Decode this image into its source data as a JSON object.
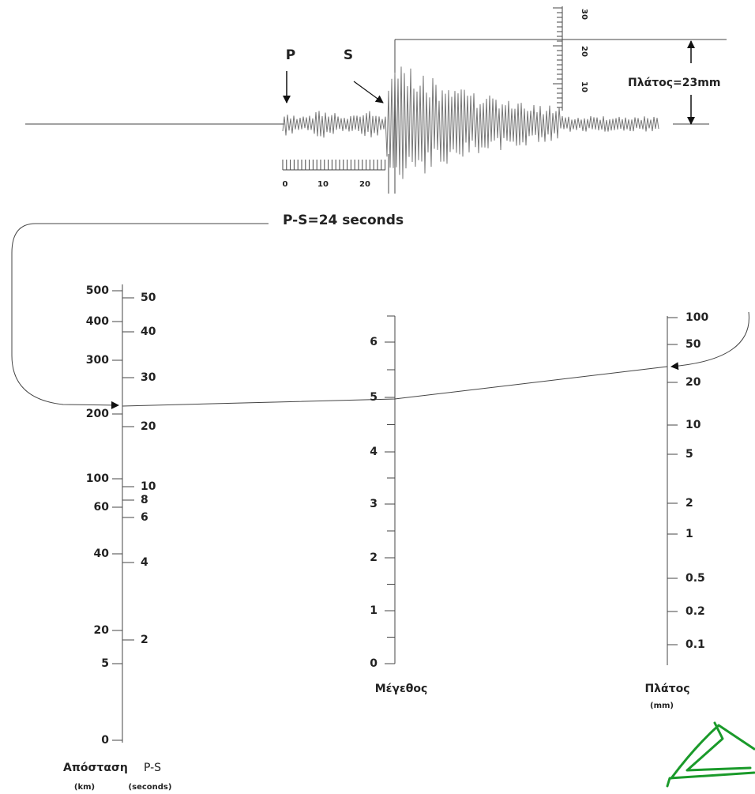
{
  "seismogram": {
    "p_label": "P",
    "s_label": "S",
    "time_ticks": [
      "0",
      "10",
      "20"
    ],
    "amplitude_ticks": [
      "30",
      "20",
      "10"
    ],
    "amplitude_reading": "Πλάτος=23mm",
    "interval_reading": "P-S=24 seconds"
  },
  "distance_scale": {
    "title": "Απόσταση",
    "title_suffix": "P-S",
    "km_unit": "(km)",
    "seconds_unit": "(seconds)",
    "km_ticks": [
      "500",
      "400",
      "300",
      "200",
      "100",
      "60",
      "40",
      "20",
      "5",
      "0"
    ],
    "seconds_ticks": [
      "50",
      "40",
      "30",
      "20",
      "10",
      "8",
      "6",
      "4",
      "2"
    ]
  },
  "magnitude_scale": {
    "title": "Μέγεθος",
    "ticks": [
      "6",
      "5",
      "4",
      "3",
      "2",
      "1",
      "0"
    ]
  },
  "amplitude_scale": {
    "title": "Πλάτος",
    "unit": "(mm)",
    "ticks": [
      "100",
      "50",
      "20",
      "10",
      "5",
      "2",
      "1",
      "0.5",
      "0.2",
      "0.1"
    ]
  }
}
